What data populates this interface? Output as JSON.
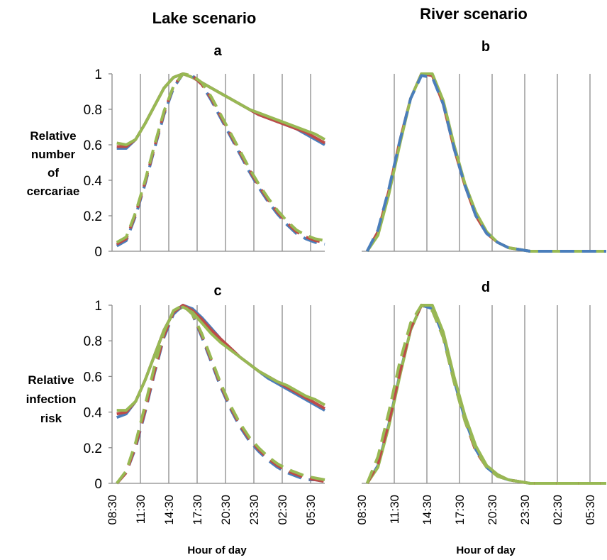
{
  "column_titles": [
    "Lake scenario",
    "River scenario"
  ],
  "ylabels": {
    "top": [
      "Relative",
      "number",
      "of",
      "cercariae"
    ],
    "bottom": [
      "Relative",
      "infection",
      "risk"
    ]
  },
  "xlabel": "Hour of day",
  "x_ticks": [
    "08:30",
    "11:30",
    "14:30",
    "17:30",
    "20:30",
    "23:30",
    "02:30",
    "05:30"
  ],
  "y_ticks": [
    "0",
    "0.2",
    "0.4",
    "0.6",
    "0.8",
    "1"
  ],
  "colors": {
    "blue": "#4a7ebb",
    "red": "#be4b48",
    "green": "#98b954"
  },
  "chart_data": [
    {
      "type": "line",
      "panel": "a",
      "x_hours": [
        9,
        10,
        11,
        12,
        13,
        14,
        15,
        16,
        17,
        18,
        19,
        20,
        21,
        22,
        23,
        24,
        25,
        26,
        27,
        28,
        29,
        30,
        31
      ],
      "ylim": [
        0,
        1
      ],
      "series": [
        {
          "color": "blue",
          "dash": false,
          "values": [
            0.58,
            0.58,
            0.63,
            0.72,
            0.82,
            0.92,
            0.98,
            1.0,
            0.98,
            0.95,
            0.92,
            0.89,
            0.86,
            0.83,
            0.8,
            0.77,
            0.75,
            0.73,
            0.71,
            0.69,
            0.66,
            0.63,
            0.6
          ]
        },
        {
          "color": "red",
          "dash": false,
          "values": [
            0.59,
            0.59,
            0.63,
            0.72,
            0.82,
            0.92,
            0.98,
            1.0,
            0.98,
            0.95,
            0.92,
            0.89,
            0.86,
            0.83,
            0.8,
            0.77,
            0.75,
            0.73,
            0.71,
            0.69,
            0.67,
            0.64,
            0.61
          ]
        },
        {
          "color": "green",
          "dash": false,
          "values": [
            0.61,
            0.6,
            0.63,
            0.72,
            0.82,
            0.92,
            0.98,
            1.0,
            0.98,
            0.95,
            0.92,
            0.89,
            0.86,
            0.83,
            0.8,
            0.78,
            0.76,
            0.74,
            0.72,
            0.7,
            0.68,
            0.66,
            0.63
          ]
        },
        {
          "color": "blue",
          "dash": true,
          "values": [
            0.03,
            0.06,
            0.2,
            0.38,
            0.58,
            0.77,
            0.92,
            1.0,
            0.99,
            0.94,
            0.85,
            0.75,
            0.65,
            0.55,
            0.45,
            0.36,
            0.28,
            0.21,
            0.15,
            0.1,
            0.07,
            0.05,
            0.04
          ]
        },
        {
          "color": "red",
          "dash": true,
          "values": [
            0.04,
            0.07,
            0.21,
            0.39,
            0.59,
            0.78,
            0.93,
            1.0,
            0.99,
            0.94,
            0.86,
            0.76,
            0.66,
            0.56,
            0.46,
            0.37,
            0.29,
            0.22,
            0.16,
            0.11,
            0.08,
            0.06,
            0.05
          ]
        },
        {
          "color": "green",
          "dash": true,
          "values": [
            0.05,
            0.08,
            0.22,
            0.4,
            0.6,
            0.79,
            0.93,
            1.0,
            0.99,
            0.95,
            0.87,
            0.77,
            0.67,
            0.57,
            0.47,
            0.38,
            0.3,
            0.23,
            0.17,
            0.12,
            0.09,
            0.07,
            0.06
          ]
        }
      ]
    },
    {
      "type": "line",
      "panel": "b",
      "x_hours": [
        9,
        10,
        11,
        12,
        13,
        14,
        15,
        16,
        17,
        18,
        19,
        20,
        21,
        22,
        23,
        24,
        25,
        26,
        27,
        28,
        29,
        30,
        31
      ],
      "ylim": [
        0,
        1
      ],
      "series": [
        {
          "color": "blue",
          "dash": true,
          "values": [
            0.0,
            0.12,
            0.35,
            0.62,
            0.86,
            0.99,
            0.98,
            0.83,
            0.58,
            0.37,
            0.2,
            0.1,
            0.05,
            0.02,
            0.01,
            0.0,
            0.0,
            0.0,
            0.0,
            0.0,
            0.0,
            0.0,
            0.0
          ]
        },
        {
          "color": "red",
          "dash": false,
          "values": [
            0.0,
            0.11,
            0.34,
            0.62,
            0.86,
            1.0,
            0.99,
            0.83,
            0.58,
            0.37,
            0.2,
            0.1,
            0.05,
            0.02,
            0.01,
            0.0,
            0.0,
            0.0,
            0.0,
            0.0,
            0.0,
            0.0,
            0.0
          ]
        },
        {
          "color": "green",
          "dash": false,
          "values": [
            0.0,
            0.09,
            0.32,
            0.6,
            0.86,
            1.0,
            1.0,
            0.85,
            0.6,
            0.38,
            0.22,
            0.11,
            0.05,
            0.02,
            0.01,
            0.0,
            0.0,
            0.0,
            0.0,
            0.0,
            0.0,
            0.0,
            0.0
          ]
        }
      ]
    },
    {
      "type": "line",
      "panel": "c",
      "x_hours": [
        9,
        10,
        11,
        12,
        13,
        14,
        15,
        16,
        17,
        18,
        19,
        20,
        21,
        22,
        23,
        24,
        25,
        26,
        27,
        28,
        29,
        30,
        31
      ],
      "ylim": [
        0,
        1
      ],
      "series": [
        {
          "color": "blue",
          "dash": false,
          "values": [
            0.37,
            0.39,
            0.46,
            0.58,
            0.72,
            0.86,
            0.96,
            1.0,
            0.98,
            0.93,
            0.87,
            0.81,
            0.76,
            0.71,
            0.67,
            0.63,
            0.59,
            0.56,
            0.53,
            0.5,
            0.47,
            0.44,
            0.41
          ]
        },
        {
          "color": "red",
          "dash": false,
          "values": [
            0.39,
            0.4,
            0.46,
            0.58,
            0.72,
            0.86,
            0.96,
            1.0,
            0.97,
            0.92,
            0.86,
            0.81,
            0.76,
            0.71,
            0.67,
            0.63,
            0.6,
            0.57,
            0.54,
            0.51,
            0.48,
            0.45,
            0.42
          ]
        },
        {
          "color": "green",
          "dash": false,
          "values": [
            0.41,
            0.41,
            0.46,
            0.58,
            0.72,
            0.86,
            0.96,
            0.99,
            0.96,
            0.9,
            0.84,
            0.79,
            0.75,
            0.71,
            0.67,
            0.63,
            0.6,
            0.57,
            0.55,
            0.52,
            0.49,
            0.47,
            0.44
          ]
        },
        {
          "color": "blue",
          "dash": true,
          "values": [
            0.0,
            0.06,
            0.2,
            0.4,
            0.62,
            0.82,
            0.95,
            1.0,
            0.95,
            0.82,
            0.68,
            0.54,
            0.42,
            0.32,
            0.24,
            0.18,
            0.13,
            0.09,
            0.06,
            0.04,
            0.02,
            0.02,
            0.01
          ]
        },
        {
          "color": "red",
          "dash": true,
          "values": [
            0.0,
            0.06,
            0.21,
            0.41,
            0.63,
            0.83,
            0.96,
            1.0,
            0.95,
            0.83,
            0.69,
            0.55,
            0.43,
            0.33,
            0.25,
            0.19,
            0.14,
            0.1,
            0.07,
            0.05,
            0.03,
            0.02,
            0.01
          ]
        },
        {
          "color": "green",
          "dash": true,
          "values": [
            0.0,
            0.07,
            0.23,
            0.44,
            0.66,
            0.85,
            0.97,
            1.0,
            0.95,
            0.84,
            0.7,
            0.56,
            0.44,
            0.34,
            0.26,
            0.2,
            0.15,
            0.11,
            0.08,
            0.06,
            0.04,
            0.03,
            0.02
          ]
        }
      ]
    },
    {
      "type": "line",
      "panel": "d",
      "x_hours": [
        9,
        10,
        11,
        12,
        13,
        14,
        15,
        16,
        17,
        18,
        19,
        20,
        21,
        22,
        23,
        24,
        25,
        26,
        27,
        28,
        29,
        30,
        31
      ],
      "ylim": [
        0,
        1
      ],
      "series": [
        {
          "color": "blue",
          "dash": false,
          "values": [
            0.0,
            0.1,
            0.33,
            0.61,
            0.86,
            1.0,
            0.98,
            0.83,
            0.58,
            0.36,
            0.19,
            0.09,
            0.04,
            0.02,
            0.01,
            0.0,
            0.0,
            0.0,
            0.0,
            0.0,
            0.0,
            0.0,
            0.0
          ]
        },
        {
          "color": "red",
          "dash": true,
          "values": [
            0.0,
            0.11,
            0.34,
            0.62,
            0.87,
            1.0,
            0.97,
            0.82,
            0.57,
            0.35,
            0.18,
            0.09,
            0.04,
            0.02,
            0.01,
            0.0,
            0.0,
            0.0,
            0.0,
            0.0,
            0.0,
            0.0,
            0.0
          ]
        },
        {
          "color": "green",
          "dash": true,
          "values": [
            0.0,
            0.15,
            0.4,
            0.68,
            0.9,
            1.0,
            0.97,
            0.82,
            0.57,
            0.35,
            0.19,
            0.09,
            0.04,
            0.02,
            0.01,
            0.0,
            0.0,
            0.0,
            0.0,
            0.0,
            0.0,
            0.0,
            0.0
          ]
        },
        {
          "color": "green",
          "dash": false,
          "values": [
            0.0,
            0.09,
            0.32,
            0.6,
            0.86,
            1.0,
            1.0,
            0.85,
            0.6,
            0.38,
            0.21,
            0.1,
            0.05,
            0.02,
            0.01,
            0.0,
            0.0,
            0.0,
            0.0,
            0.0,
            0.0,
            0.0,
            0.0
          ]
        }
      ]
    }
  ]
}
